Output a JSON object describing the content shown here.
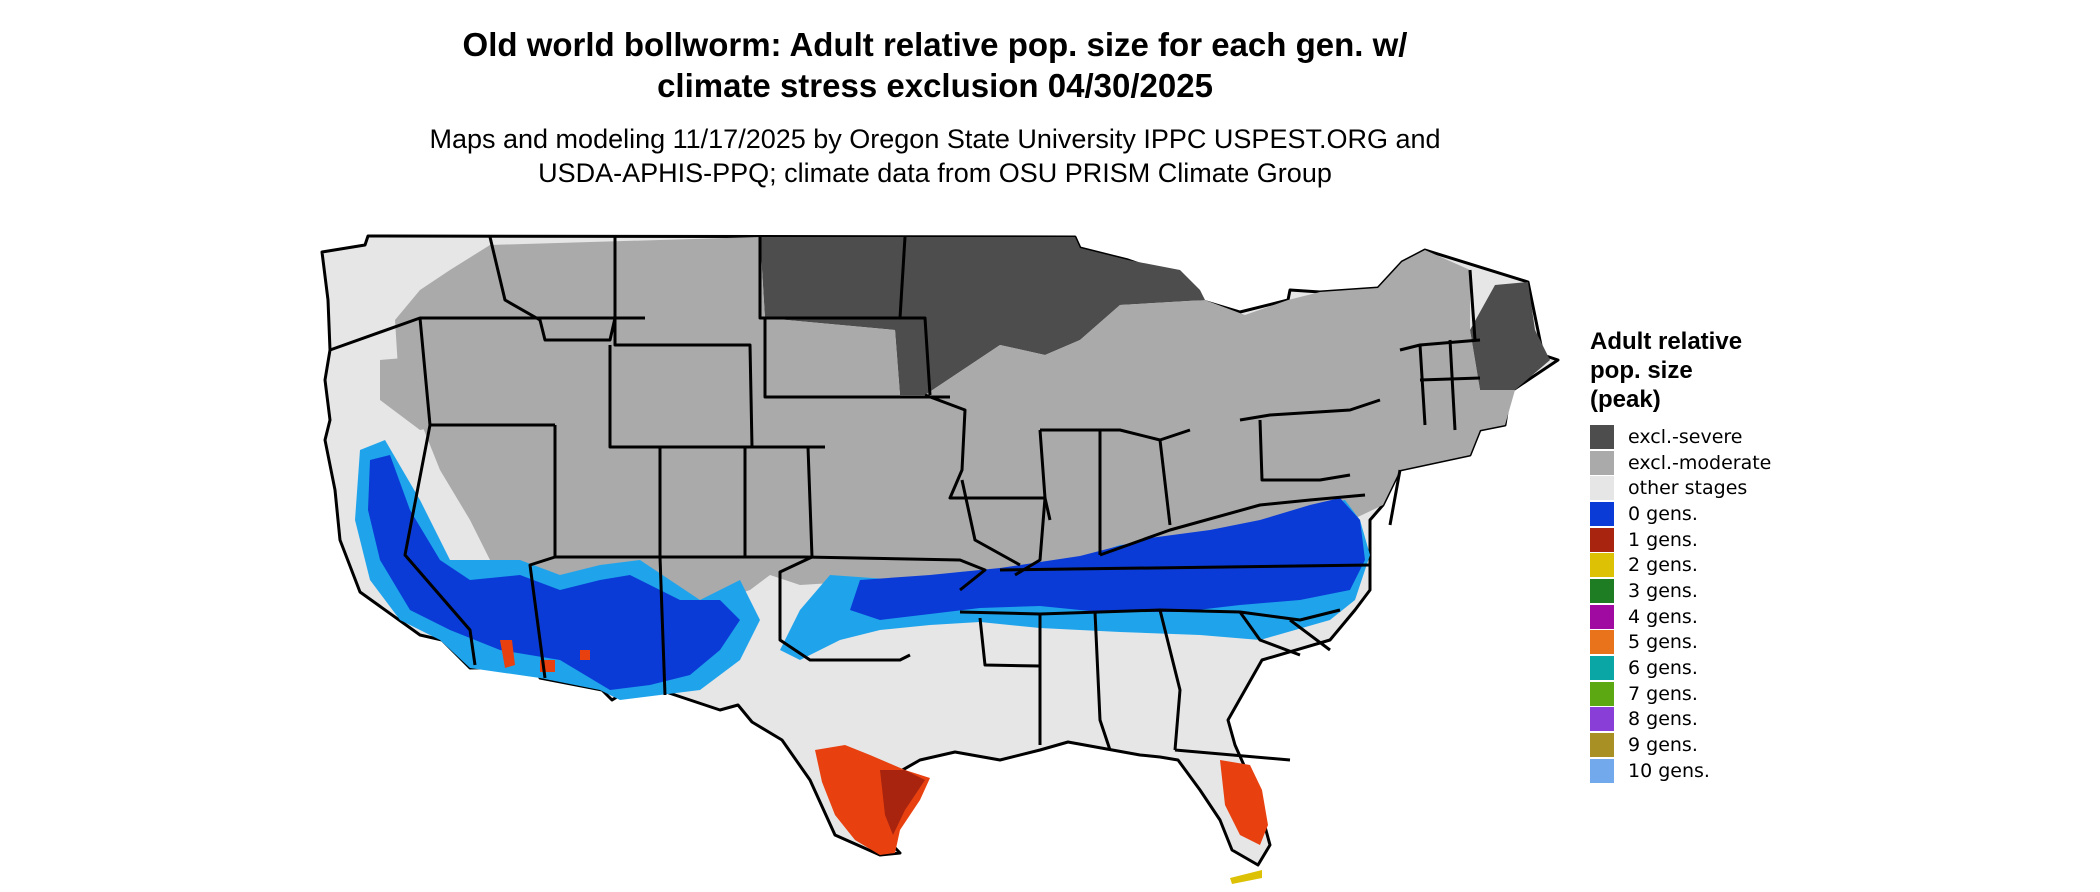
{
  "title_line1": "Old world bollworm: Adult relative pop. size for each gen. w/",
  "title_line2": "climate stress exclusion 04/30/2025",
  "subtitle_line1": "Maps and modeling 11/17/2025 by Oregon State University IPPC USPEST.ORG and",
  "subtitle_line2": "USDA-APHIS-PPQ; climate data from OSU PRISM Climate Group",
  "legend": {
    "title_lines": [
      "Adult relative",
      "pop. size",
      "(peak)"
    ],
    "items": [
      {
        "label": "excl.-severe",
        "color": "#4d4d4d"
      },
      {
        "label": "excl.-moderate",
        "color": "#aaaaaa"
      },
      {
        "label": "other stages",
        "color": "#e6e6e6"
      },
      {
        "label": "0 gens.",
        "color": "#0a3bd6"
      },
      {
        "label": "1 gens.",
        "color": "#a8240f"
      },
      {
        "label": "2 gens.",
        "color": "#dcc104"
      },
      {
        "label": "3 gens.",
        "color": "#1e7d22"
      },
      {
        "label": "4 gens.",
        "color": "#a00aa0"
      },
      {
        "label": "5 gens.",
        "color": "#e8731a"
      },
      {
        "label": "6 gens.",
        "color": "#0aa6a6"
      },
      {
        "label": "7 gens.",
        "color": "#5ba812"
      },
      {
        "label": "8 gens.",
        "color": "#8a3ed8"
      },
      {
        "label": "9 gens.",
        "color": "#a89024"
      },
      {
        "label": "10 gens.",
        "color": "#72a8ec"
      }
    ]
  },
  "map_colors": {
    "severe": "#4d4d4d",
    "moderate": "#aaaaaa",
    "other": "#e6e6e6",
    "zero_dark": "#0a3bd6",
    "zero_light": "#1fa4ec",
    "one_gen": "#e8410f",
    "one_gen_dark": "#a8240f",
    "two_gen": "#dcc104"
  }
}
